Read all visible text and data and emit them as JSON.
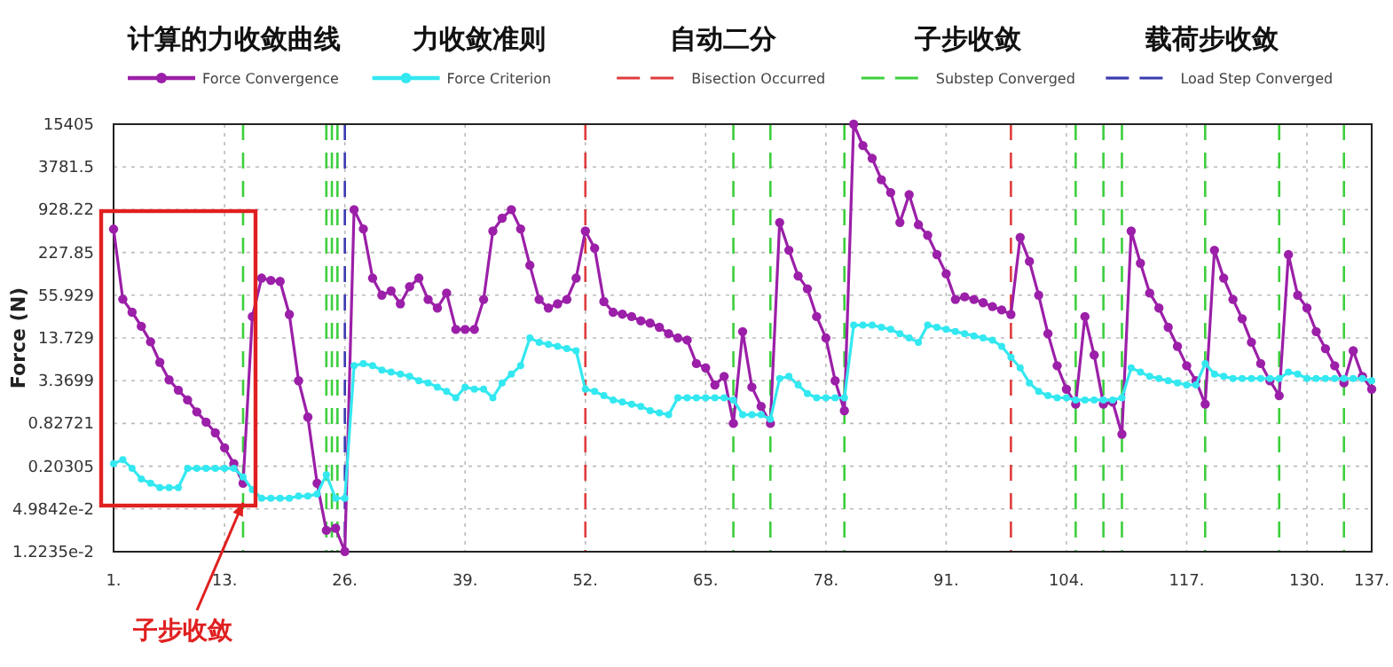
{
  "chart_data": {
    "type": "line",
    "ylabel": "Force (N)",
    "log": true,
    "grid": true,
    "legend": "top",
    "marker": "circle",
    "line_style": "solid",
    "xlim": [
      1,
      137
    ],
    "xticks": [
      {
        "value": 1,
        "label": "1."
      },
      {
        "value": 13,
        "label": "13."
      },
      {
        "value": 26,
        "label": "26."
      },
      {
        "value": 39,
        "label": "39."
      },
      {
        "value": 52,
        "label": "52."
      },
      {
        "value": 65,
        "label": "65."
      },
      {
        "value": 78,
        "label": "78."
      },
      {
        "value": 91,
        "label": "91."
      },
      {
        "value": 104,
        "label": "104."
      },
      {
        "value": 117,
        "label": "117."
      },
      {
        "value": 130,
        "label": "130."
      },
      {
        "value": 137,
        "label": "137."
      }
    ],
    "ylim": [
      0.012235,
      15405
    ],
    "yticks": [
      {
        "value": 0.012235,
        "label": "1.2235e-2"
      },
      {
        "value": 0.049842,
        "label": "4.9842e-2"
      },
      0.20305,
      0.82721,
      3.3699,
      13.729,
      55.929,
      227.85,
      928.22,
      3781.5,
      15405
    ],
    "x": [
      1,
      2,
      3,
      4,
      5,
      6,
      7,
      8,
      9,
      10,
      11,
      12,
      13,
      14,
      15,
      16,
      17,
      18,
      19,
      20,
      21,
      22,
      23,
      24,
      25,
      26,
      27,
      28,
      29,
      30,
      31,
      32,
      33,
      34,
      35,
      36,
      37,
      38,
      39,
      40,
      41,
      42,
      43,
      44,
      45,
      46,
      47,
      48,
      49,
      50,
      51,
      52,
      53,
      54,
      55,
      56,
      57,
      58,
      59,
      60,
      61,
      62,
      63,
      64,
      65,
      66,
      67,
      68,
      69,
      70,
      71,
      72,
      73,
      74,
      75,
      76,
      77,
      78,
      79,
      80,
      81,
      82,
      83,
      84,
      85,
      86,
      87,
      88,
      89,
      90,
      91,
      92,
      93,
      94,
      95,
      96,
      97,
      98,
      99,
      100,
      101,
      102,
      103,
      104,
      105,
      106,
      107,
      108,
      109,
      110,
      111,
      112,
      113,
      114,
      115,
      116,
      117,
      118,
      119,
      120,
      121,
      122,
      123,
      124,
      125,
      126,
      127,
      128,
      129,
      130,
      131,
      132,
      133,
      134,
      135,
      136,
      137
    ],
    "series": [
      {
        "name": "Force Convergence",
        "color": "#9b1fa8",
        "values": [
          490,
          49,
          32,
          20.1,
          12.1,
          6.16,
          3.46,
          2.47,
          1.79,
          1.21,
          0.863,
          0.607,
          0.371,
          0.221,
          0.116,
          27.7,
          98,
          91,
          88,
          29.7,
          3.37,
          1.02,
          0.116,
          0.0247,
          0.0265,
          0.0123,
          928,
          493,
          98,
          55.9,
          64.4,
          42.2,
          74,
          98,
          48.6,
          36.7,
          60,
          18.2,
          18.2,
          18.2,
          48.6,
          460,
          701,
          928,
          493,
          149.5,
          48.6,
          36.7,
          42.2,
          48.6,
          98,
          460,
          262,
          45.3,
          31.9,
          30,
          27.7,
          24.1,
          22.4,
          19.5,
          15.8,
          13.7,
          12.8,
          5.91,
          5.14,
          2.93,
          3.88,
          0.827,
          16.9,
          2.73,
          1.45,
          0.827,
          609,
          245,
          105,
          69,
          27.7,
          13.7,
          3.37,
          1.26,
          15405,
          7631,
          5007,
          2481,
          1628,
          609,
          1517,
          567,
          400,
          212,
          113,
          48.6,
          53,
          48.6,
          43.7,
          38.5,
          34.5,
          29.7,
          372,
          170,
          55.9,
          15.8,
          5.51,
          2.55,
          1.56,
          27.7,
          7.83,
          1.56,
          1.67,
          0.582,
          460,
          160,
          60,
          36.7,
          19.5,
          10.4,
          5.51,
          3.37,
          1.56,
          245,
          98,
          48.6,
          25.8,
          11.9,
          5.91,
          3.37,
          2.06,
          212,
          55.9,
          36.7,
          16.9,
          9.65,
          5.51,
          3.14,
          9.0,
          3.88,
          2.55
        ]
      },
      {
        "name": "Force Criterion",
        "color": "#33e8f0",
        "values": [
          0.221,
          0.251,
          0.189,
          0.133,
          0.116,
          0.1005,
          0.1005,
          0.1005,
          0.189,
          0.189,
          0.189,
          0.189,
          0.189,
          0.189,
          0.143,
          0.0938,
          0.0708,
          0.0708,
          0.0708,
          0.0708,
          0.076,
          0.076,
          0.0815,
          0.153,
          0.0708,
          0.0708,
          5.51,
          5.91,
          5.51,
          4.79,
          4.46,
          4.18,
          3.88,
          3.37,
          3.14,
          2.73,
          2.37,
          1.92,
          2.73,
          2.55,
          2.55,
          1.92,
          3.14,
          4.18,
          5.51,
          13.7,
          11.9,
          11.1,
          10.4,
          9.65,
          9.0,
          2.55,
          2.37,
          2.06,
          1.79,
          1.67,
          1.56,
          1.45,
          1.26,
          1.17,
          1.1,
          1.92,
          1.92,
          1.92,
          1.92,
          1.92,
          1.92,
          1.79,
          1.1,
          1.1,
          1.1,
          0.952,
          3.62,
          3.88,
          2.93,
          2.21,
          1.92,
          1.92,
          1.92,
          1.92,
          20.9,
          20.9,
          20.9,
          19.5,
          18.2,
          15.8,
          13.7,
          11.9,
          20.9,
          19.5,
          18.2,
          16.9,
          15.8,
          14.7,
          13.7,
          12.8,
          10.4,
          7.29,
          5.14,
          3.14,
          2.37,
          2.06,
          1.92,
          1.92,
          1.79,
          1.79,
          1.79,
          1.79,
          1.79,
          1.92,
          5.14,
          4.46,
          3.88,
          3.62,
          3.37,
          3.14,
          2.93,
          2.93,
          5.91,
          4.18,
          3.88,
          3.62,
          3.62,
          3.62,
          3.62,
          3.62,
          3.62,
          4.46,
          4.18,
          3.62,
          3.62,
          3.62,
          3.62,
          3.62,
          3.62,
          3.62,
          3.37
        ]
      }
    ],
    "ref_lines": [
      {
        "axis": "x",
        "value": 52,
        "label": "Bisection Occurred",
        "color": "#e03c3c",
        "line_style": "dashed"
      },
      {
        "axis": "x",
        "value": 15,
        "label": "Substep Converged",
        "color": "#3ccf3c",
        "line_style": "dashed"
      },
      {
        "axis": "x",
        "value": 26,
        "label": "Load Step Converged",
        "color": "#3a3ab0",
        "line_style": "dashed"
      },
      {
        "axis": "x",
        "value": 98,
        "color": "#e03c3c",
        "line_style": "dashed"
      },
      {
        "axis": "x",
        "value": 24,
        "color": "#3ccf3c",
        "line_style": "dashed"
      },
      {
        "axis": "x",
        "value": 24.6,
        "color": "#3ccf3c",
        "line_style": "dashed"
      },
      {
        "axis": "x",
        "value": 25.2,
        "color": "#3ccf3c",
        "line_style": "dashed"
      },
      {
        "axis": "x",
        "value": 68,
        "color": "#3ccf3c",
        "line_style": "dashed"
      },
      {
        "axis": "x",
        "value": 72,
        "color": "#3ccf3c",
        "line_style": "dashed"
      },
      {
        "axis": "x",
        "value": 80,
        "color": "#3ccf3c",
        "line_style": "dashed"
      },
      {
        "axis": "x",
        "value": 105,
        "color": "#3ccf3c",
        "line_style": "dashed"
      },
      {
        "axis": "x",
        "value": 108,
        "color": "#3ccf3c",
        "line_style": "dashed"
      },
      {
        "axis": "x",
        "value": 110,
        "color": "#3ccf3c",
        "line_style": "dashed"
      },
      {
        "axis": "x",
        "value": 119,
        "color": "#3ccf3c",
        "line_style": "dashed"
      },
      {
        "axis": "x",
        "value": 127,
        "color": "#3ccf3c",
        "line_style": "dashed"
      },
      {
        "axis": "x",
        "value": 134,
        "color": "#3ccf3c",
        "line_style": "dashed"
      }
    ],
    "annotations": [
      "计算的力收敛曲线",
      "力收敛准则",
      "自动二分",
      "子步收敛",
      "载荷步收敛",
      {
        "text": "子步收敛",
        "x": 15,
        "y": 0.0612
      }
    ]
  }
}
